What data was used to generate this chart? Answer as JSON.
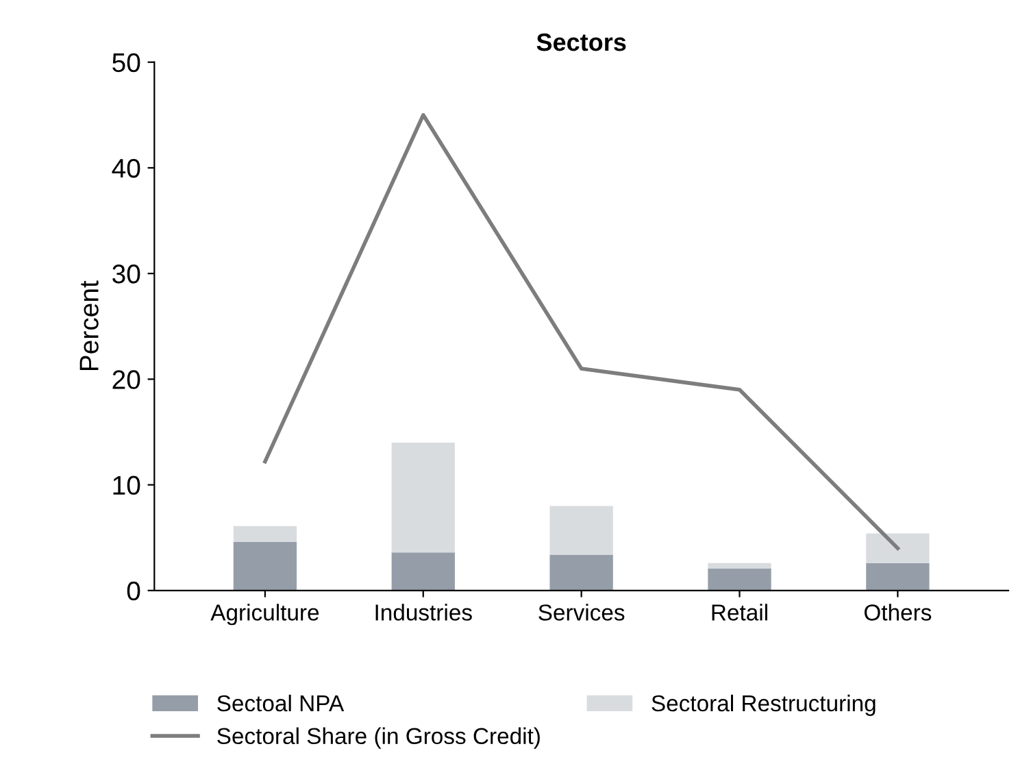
{
  "chart_data": {
    "type": "bar",
    "title": "Sectors",
    "ylabel": "Percent",
    "stacked": true,
    "categories": [
      "Agriculture",
      "Industries",
      "Services",
      "Retail",
      "Others"
    ],
    "series": [
      {
        "name": "Sectoal NPA",
        "color": "#959ea8",
        "values": [
          4.6,
          3.6,
          3.4,
          2.1,
          2.6
        ]
      },
      {
        "name": "Sectoral Restructuring",
        "color": "#d9dcdf",
        "values": [
          1.5,
          10.4,
          4.6,
          0.5,
          2.8
        ]
      },
      {
        "name": "Sectoral Share (in Gross Credit)",
        "type": "line",
        "color": "#7d7d7d",
        "values": [
          12.2,
          45,
          21,
          19,
          4
        ]
      }
    ],
    "ylim": [
      0,
      50
    ],
    "yticks": [
      0,
      10,
      20,
      30,
      40,
      50
    ],
    "grid": false,
    "legend": "bottom"
  }
}
